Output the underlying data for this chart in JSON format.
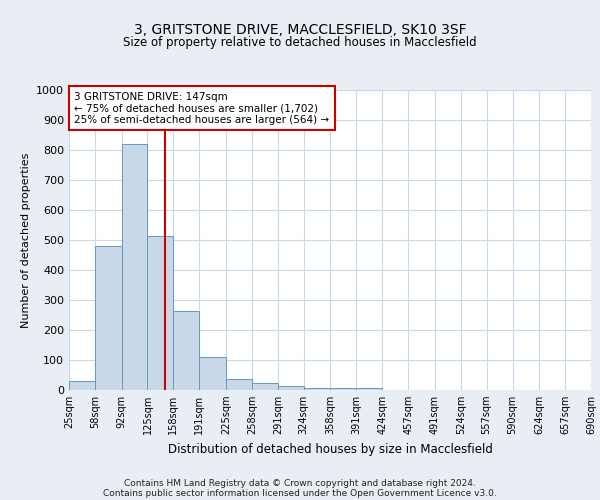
{
  "title_line1": "3, GRITSTONE DRIVE, MACCLESFIELD, SK10 3SF",
  "title_line2": "Size of property relative to detached houses in Macclesfield",
  "xlabel": "Distribution of detached houses by size in Macclesfield",
  "ylabel": "Number of detached properties",
  "bar_color": "#c8d8e8",
  "bar_edge_color": "#6699bb",
  "bins": [
    25,
    58,
    92,
    125,
    158,
    191,
    225,
    258,
    291,
    324,
    358,
    391,
    424,
    457,
    491,
    524,
    557,
    590,
    624,
    657,
    690
  ],
  "bin_labels": [
    "25sqm",
    "58sqm",
    "92sqm",
    "125sqm",
    "158sqm",
    "191sqm",
    "225sqm",
    "258sqm",
    "291sqm",
    "324sqm",
    "358sqm",
    "391sqm",
    "424sqm",
    "457sqm",
    "491sqm",
    "524sqm",
    "557sqm",
    "590sqm",
    "624sqm",
    "657sqm",
    "690sqm"
  ],
  "counts": [
    30,
    480,
    820,
    515,
    265,
    110,
    38,
    22,
    12,
    8,
    8,
    8,
    0,
    0,
    0,
    0,
    0,
    0,
    0,
    0
  ],
  "ylim": [
    0,
    1000
  ],
  "yticks": [
    0,
    100,
    200,
    300,
    400,
    500,
    600,
    700,
    800,
    900,
    1000
  ],
  "vline_x": 147,
  "vline_color": "#cc0000",
  "annotation_line1": "3 GRITSTONE DRIVE: 147sqm",
  "annotation_line2": "← 75% of detached houses are smaller (1,702)",
  "annotation_line3": "25% of semi-detached houses are larger (564) →",
  "annotation_box_color": "#ffffff",
  "annotation_box_edge_color": "#cc0000",
  "footer_line1": "Contains HM Land Registry data © Crown copyright and database right 2024.",
  "footer_line2": "Contains public sector information licensed under the Open Government Licence v3.0.",
  "background_color": "#e8eef4",
  "plot_background": "#ffffff",
  "grid_color": "#c8d8e8"
}
